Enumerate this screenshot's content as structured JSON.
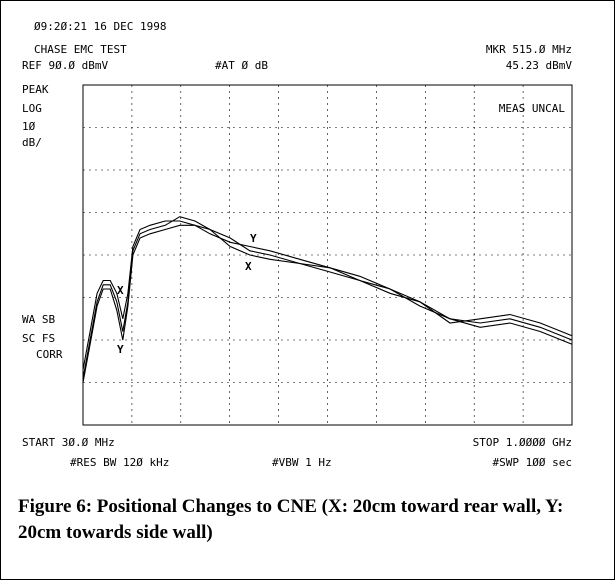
{
  "header": {
    "time": "Ø9:2Ø:21  16 DEC 1998",
    "test": "CHASE EMC TEST",
    "marker": "MKR 515.Ø MHz",
    "ref": "REF 9Ø.Ø dBmV",
    "atten": "#AT Ø dB",
    "marker_level": "45.23 dBmV"
  },
  "side": {
    "mode": "PEAK",
    "scale": "LOG",
    "div": "1Ø",
    "unit": "dB/",
    "uncal": "MEAS UNCAL",
    "wa": "WA SB",
    "sc": "SC FS",
    "corr": "CORR"
  },
  "footer": {
    "start": "START 3Ø.Ø MHz",
    "stop": "STOP 1.ØØØØ GHz",
    "rbw": "#RES BW 12Ø kHz",
    "vbw": "#VBW 1 Hz",
    "swp": "#SWP 1ØØ  sec"
  },
  "caption": "Figure 6: Positional Changes to CNE (X: 20cm toward rear wall, Y: 20cm towards side wall)",
  "chart_data": {
    "type": "line",
    "xlim": [
      30,
      1000
    ],
    "ylim": [
      10,
      90
    ],
    "x": [
      30,
      44,
      58,
      70,
      84,
      97,
      109,
      119,
      129,
      143,
      163,
      193,
      222,
      252,
      282,
      322,
      361,
      401,
      460,
      520,
      579,
      639,
      698,
      758,
      818,
      877,
      937,
      1000
    ],
    "series": [
      {
        "color": "#000000",
        "values": [
          21,
          30,
          39,
          43,
          43,
          39,
          32,
          39,
          51,
          55,
          56,
          57,
          59,
          58,
          56,
          54,
          51,
          50,
          48,
          47,
          44,
          42,
          39,
          35,
          34,
          35,
          33,
          30
        ]
      },
      {
        "color": "#000000",
        "values": [
          23,
          32,
          41,
          44,
          44,
          41,
          35,
          41,
          52,
          56,
          57,
          58,
          58,
          57,
          56,
          52,
          50,
          49,
          48,
          46,
          44,
          41,
          39,
          34,
          35,
          36,
          34,
          31
        ]
      },
      {
        "color": "#000000",
        "values": [
          20,
          29,
          38,
          42,
          42,
          37,
          30,
          38,
          50,
          54,
          55,
          56,
          57,
          57,
          55,
          53,
          52,
          51,
          49,
          47,
          45,
          42,
          38,
          35,
          33,
          34,
          32,
          29
        ]
      }
    ],
    "annotations": [
      "X",
      "Y",
      "Y",
      "X"
    ]
  }
}
